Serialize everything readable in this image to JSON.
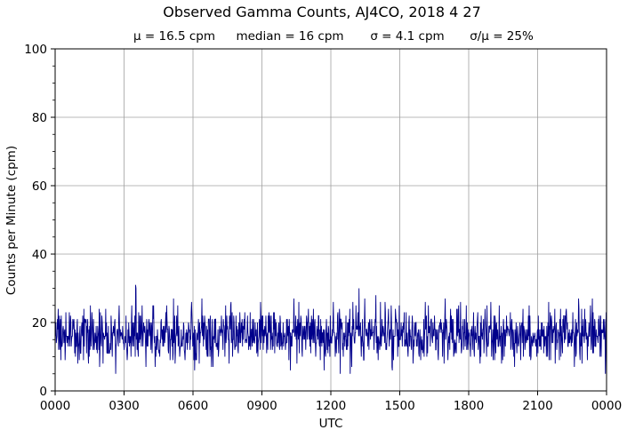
{
  "chart_data": {
    "type": "line",
    "title": "Observed Gamma Counts, AJ4CO, 2018 4 27",
    "subtitle": {
      "mean": "μ = 16.5 cpm",
      "median": "median = 16 cpm",
      "sigma": "σ = 4.1 cpm",
      "ratio": "σ/μ = 25%"
    },
    "xlabel": "UTC",
    "ylabel": "Counts per Minute (cpm)",
    "ylim": [
      0,
      100
    ],
    "xlim_hours": [
      0,
      24
    ],
    "x_ticks": [
      "0000",
      "0300",
      "0600",
      "0900",
      "1200",
      "1500",
      "1800",
      "2100",
      "0000"
    ],
    "y_ticks": [
      "0",
      "20",
      "40",
      "60",
      "80",
      "100"
    ],
    "grid": true,
    "colors": {
      "series": "#00008b",
      "grid": "#a0a0a0"
    },
    "series": [
      {
        "name": "",
        "sampling": "1 sample per minute, 0000–2400 UTC",
        "mean": 16.5,
        "median": 16,
        "sigma": 4.1,
        "min": 5,
        "max": 31
      }
    ]
  }
}
